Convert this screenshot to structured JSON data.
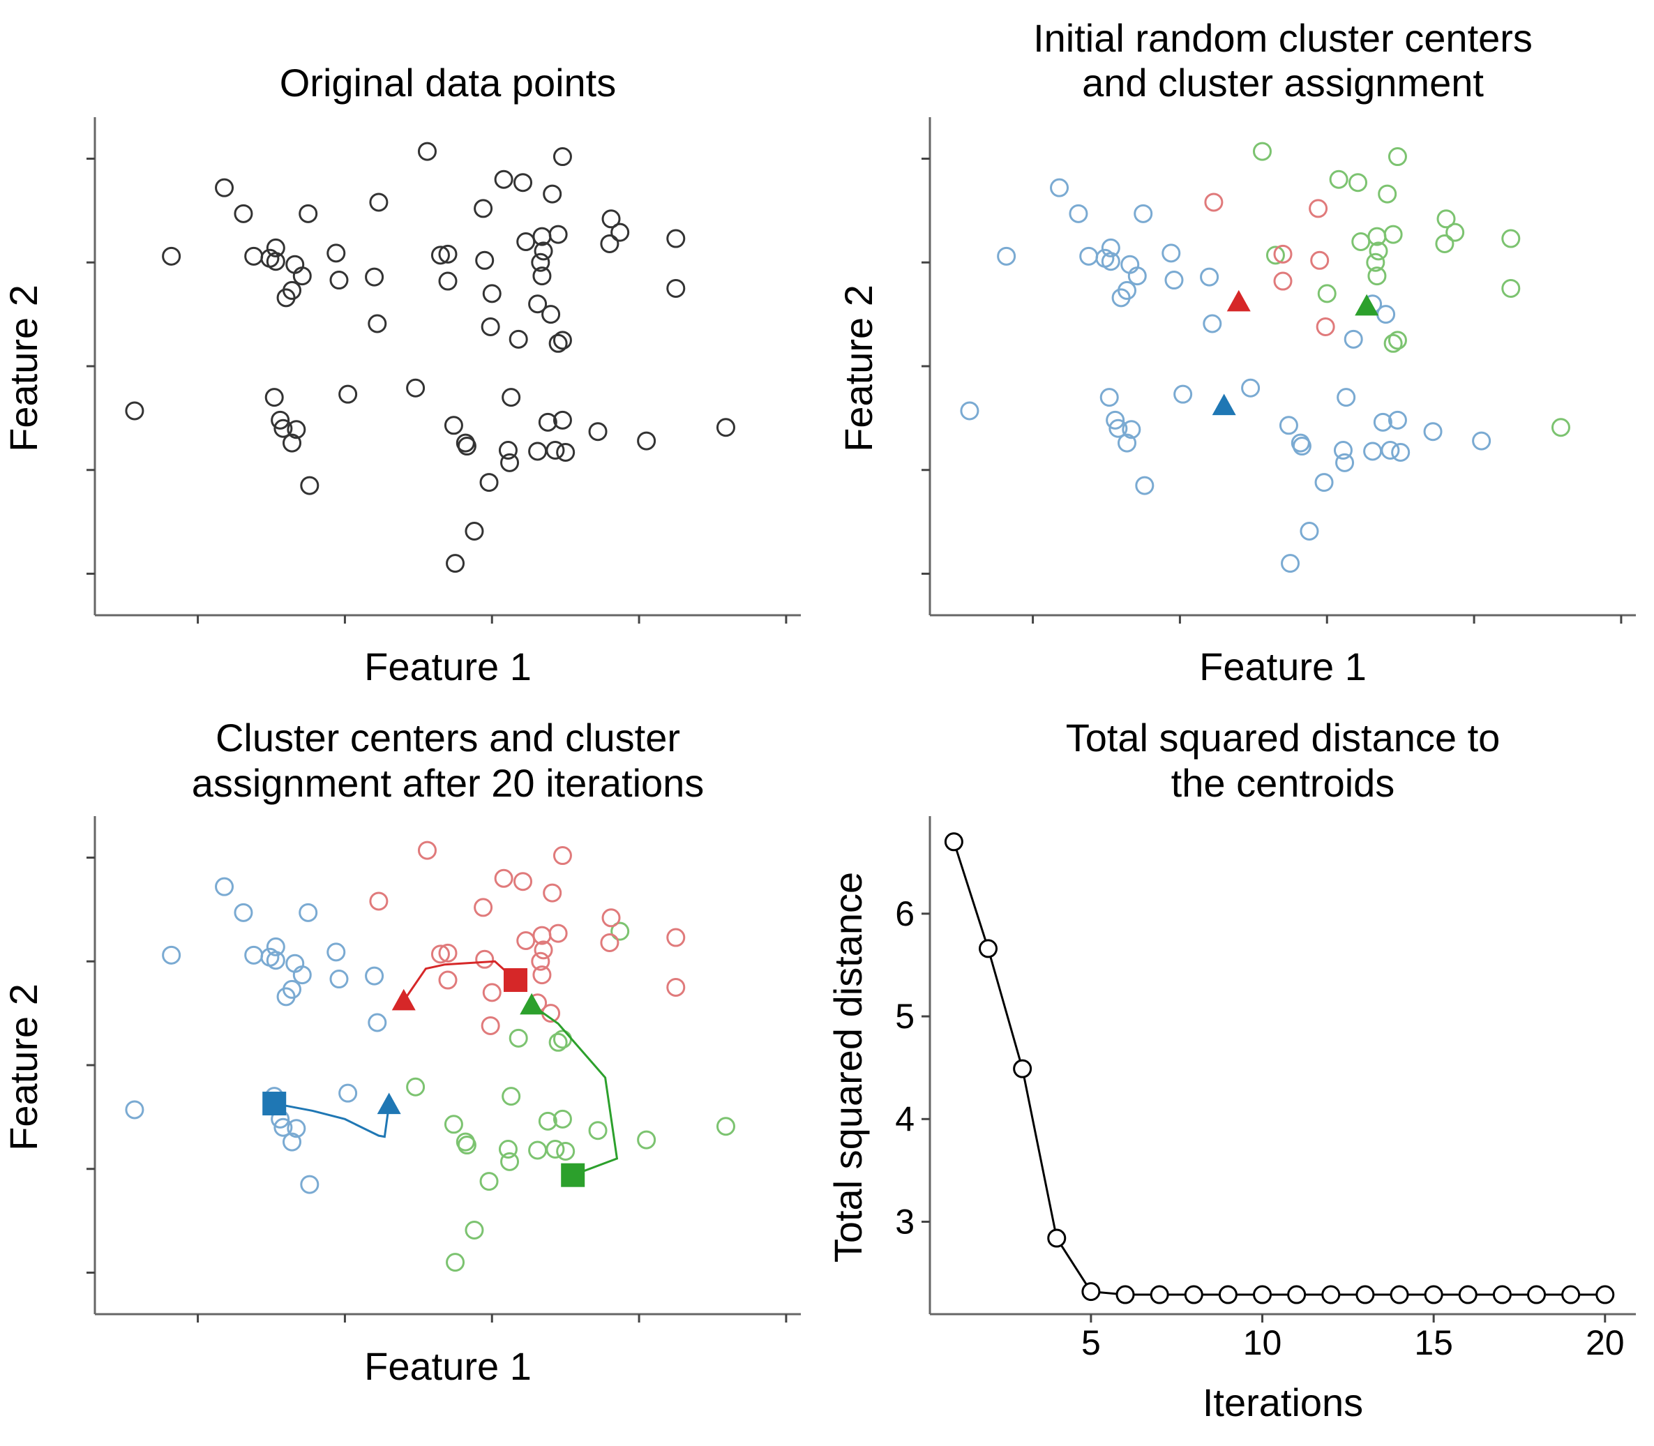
{
  "colors": {
    "black": "#333333",
    "red": "#d62728",
    "green": "#2ca02c",
    "blue": "#1f77b4",
    "red_light": "#e07a7b",
    "green_light": "#7cc370",
    "blue_light": "#7aaad2"
  },
  "panels": {
    "p1": {
      "title": [
        "Original data points"
      ],
      "xlabel": "Feature 1",
      "ylabel": "Feature 2"
    },
    "p2": {
      "title": [
        "Initial random cluster centers",
        "and cluster assignment"
      ],
      "xlabel": "Feature 1",
      "ylabel": "Feature 2"
    },
    "p3": {
      "title": [
        "Cluster centers and cluster",
        "assignment after 20 iterations"
      ],
      "xlabel": "Feature 1",
      "ylabel": "Feature 2"
    },
    "p4": {
      "title": [
        "Total squared distance to",
        "the centroids"
      ],
      "xlabel": "Iterations",
      "ylabel": "Total squared distance"
    }
  },
  "chart_data": [
    {
      "type": "scatter",
      "panel": "p1",
      "title": "Original data points",
      "xlabel": "Feature 1",
      "ylabel": "Feature 2",
      "xlim": [
        -2.2,
        2.6
      ],
      "ylim": [
        -2.4,
        2.4
      ],
      "xticks": [
        -1.5,
        -0.5,
        0.5,
        1.5,
        2.5
      ],
      "yticks": [
        -2,
        -1,
        0,
        1,
        2
      ],
      "tick_labels_shown": false,
      "x": [
        0.98,
        0.71,
        0.81,
        0.91,
        0.06,
        0.15,
        0.2,
        -0.86,
        -0.75,
        -1.32,
        -1.01,
        -1.68,
        1.37,
        0.48,
        0.95,
        -0.28,
        0.9,
        -0.02,
        0.81,
        0.32,
        -0.3,
        1.31,
        1.0,
        -1.19,
        -0.74,
        -0.97,
        -0.79,
        -0.27,
        -0.56,
        0.84,
        0.93,
        1.75,
        0.38,
        0.24,
        0.58,
        0.61,
        1.3,
        0.25,
        0.88,
        0.63,
        0.98,
        -1.12,
        -0.98,
        -0.86,
        0.62,
        0.5,
        0.49,
        1.22,
        1.75,
        2.09,
        0.2,
        -1.93,
        -0.54,
        0.45,
        0.83,
        -0.97,
        -0.94,
        -0.9,
        0.84,
        -0.48,
        0.95,
        0.85,
        0.44,
        -0.83,
        -0.84,
        0.98,
        -0.92,
        0.68,
        0.73,
        0.33,
        1.55
      ],
      "y": [
        2.02,
        1.77,
        0.6,
        1.66,
        2.07,
        1.07,
        0.82,
        0.73,
        1.47,
        1.72,
        1.04,
        1.06,
        1.29,
        -1.12,
        1.27,
        0.41,
        0.5,
        -0.21,
        -0.82,
        -0.74,
        0.86,
        1.42,
        -0.83,
        1.47,
        -1.15,
        1.14,
        0.87,
        1.58,
        1.09,
        1.25,
        -0.81,
        1.23,
        -1.59,
        -0.57,
        1.8,
        -0.81,
        1.18,
        -1.9,
        -0.54,
        -0.3,
        -0.52,
        1.06,
        -0.3,
        -0.74,
        -0.93,
        0.7,
        0.38,
        -0.63,
        0.75,
        -0.59,
        1.08,
        -0.43,
        0.83,
        1.02,
        1.0,
        1.01,
        -0.52,
        0.66,
        0.87,
        -0.27,
        0.22,
        1.11,
        1.52,
        -0.61,
        0.98,
        0.25,
        -0.6,
        0.26,
        1.2,
        -0.77,
        -0.72
      ]
    },
    {
      "type": "scatter",
      "panel": "p2",
      "title": "Initial random cluster centers and cluster assignment",
      "xlabel": "Feature 1",
      "ylabel": "Feature 2",
      "xlim": [
        -2.2,
        2.6
      ],
      "ylim": [
        -2.4,
        2.4
      ],
      "xticks": [
        -1.5,
        -0.5,
        0.5,
        1.5,
        2.5
      ],
      "yticks": [
        -2,
        -1,
        0,
        1,
        2
      ],
      "tick_labels_shown": false,
      "labels": [
        1,
        1,
        2,
        1,
        1,
        1,
        0,
        2,
        2,
        2,
        2,
        2,
        1,
        2,
        1,
        2,
        2,
        2,
        2,
        2,
        2,
        1,
        2,
        2,
        2,
        2,
        2,
        0,
        2,
        1,
        2,
        1,
        2,
        2,
        1,
        2,
        1,
        2,
        2,
        2,
        2,
        2,
        2,
        2,
        2,
        1,
        0,
        2,
        1,
        1,
        0,
        2,
        2,
        0,
        1,
        2,
        2,
        2,
        1,
        2,
        1,
        1,
        0,
        2,
        2,
        1,
        2,
        2,
        1,
        2,
        2
      ],
      "label_colors": [
        "red_light",
        "green_light",
        "blue_light"
      ],
      "centers": [
        {
          "x": -0.1,
          "y": 0.62,
          "color": "red"
        },
        {
          "x": 0.77,
          "y": 0.58,
          "color": "green"
        },
        {
          "x": -0.2,
          "y": -0.38,
          "color": "blue"
        }
      ]
    },
    {
      "type": "scatter",
      "panel": "p3",
      "title": "Cluster centers and cluster assignment after 20 iterations",
      "xlabel": "Feature 1",
      "ylabel": "Feature 2",
      "xlim": [
        -2.2,
        2.6
      ],
      "ylim": [
        -2.4,
        2.4
      ],
      "xticks": [
        -1.5,
        -0.5,
        0.5,
        1.5,
        2.5
      ],
      "yticks": [
        -2,
        -1,
        0,
        1,
        2
      ],
      "tick_labels_shown": false,
      "labels": [
        0,
        0,
        0,
        0,
        0,
        0,
        0,
        2,
        2,
        2,
        2,
        2,
        1,
        1,
        0,
        2,
        0,
        1,
        1,
        1,
        2,
        0,
        1,
        2,
        2,
        2,
        2,
        0,
        2,
        0,
        1,
        0,
        1,
        1,
        0,
        1,
        0,
        1,
        1,
        1,
        1,
        2,
        2,
        2,
        1,
        0,
        0,
        1,
        0,
        1,
        0,
        2,
        2,
        0,
        0,
        2,
        2,
        2,
        0,
        2,
        1,
        0,
        0,
        2,
        2,
        1,
        2,
        1,
        0,
        1,
        1
      ],
      "label_colors": [
        "red_light",
        "green_light",
        "blue_light"
      ],
      "trajectories": [
        {
          "color": "red",
          "x": [
            -0.1,
            0.05,
            0.18,
            0.52,
            0.66
          ],
          "y": [
            0.62,
            0.93,
            0.97,
            1.0,
            0.82
          ]
        },
        {
          "color": "green",
          "x": [
            0.77,
            0.95,
            1.27,
            1.35,
            1.05
          ],
          "y": [
            0.58,
            0.4,
            -0.12,
            -0.9,
            -1.06
          ]
        },
        {
          "color": "blue",
          "x": [
            -0.2,
            -0.23,
            -0.27,
            -0.5,
            -0.72,
            -0.98
          ],
          "y": [
            -0.38,
            -0.69,
            -0.68,
            -0.52,
            -0.44,
            -0.37
          ]
        }
      ],
      "initial_centers": [
        {
          "x": -0.1,
          "y": 0.62,
          "color": "red"
        },
        {
          "x": 0.77,
          "y": 0.58,
          "color": "green"
        },
        {
          "x": -0.2,
          "y": -0.38,
          "color": "blue"
        }
      ],
      "final_centers": [
        {
          "x": 0.66,
          "y": 0.82,
          "color": "red"
        },
        {
          "x": 1.05,
          "y": -1.06,
          "color": "green"
        },
        {
          "x": -0.98,
          "y": -0.37,
          "color": "blue"
        }
      ]
    },
    {
      "type": "line",
      "panel": "p4",
      "title": "Total squared distance to the centroids",
      "xlabel": "Iterations",
      "ylabel": "Total squared distance",
      "xlim": [
        0.3,
        20.9
      ],
      "ylim": [
        2.1,
        6.95
      ],
      "xticks": [
        5,
        10,
        15,
        20
      ],
      "yticks": [
        3,
        4,
        5,
        6
      ],
      "x": [
        1,
        2,
        3,
        4,
        5,
        6,
        7,
        8,
        9,
        10,
        11,
        12,
        13,
        14,
        15,
        16,
        17,
        18,
        19,
        20
      ],
      "y": [
        6.7,
        5.66,
        4.49,
        2.84,
        2.32,
        2.29,
        2.29,
        2.29,
        2.29,
        2.29,
        2.29,
        2.29,
        2.29,
        2.29,
        2.29,
        2.29,
        2.29,
        2.29,
        2.29,
        2.29
      ],
      "marker": "open-circle"
    }
  ]
}
